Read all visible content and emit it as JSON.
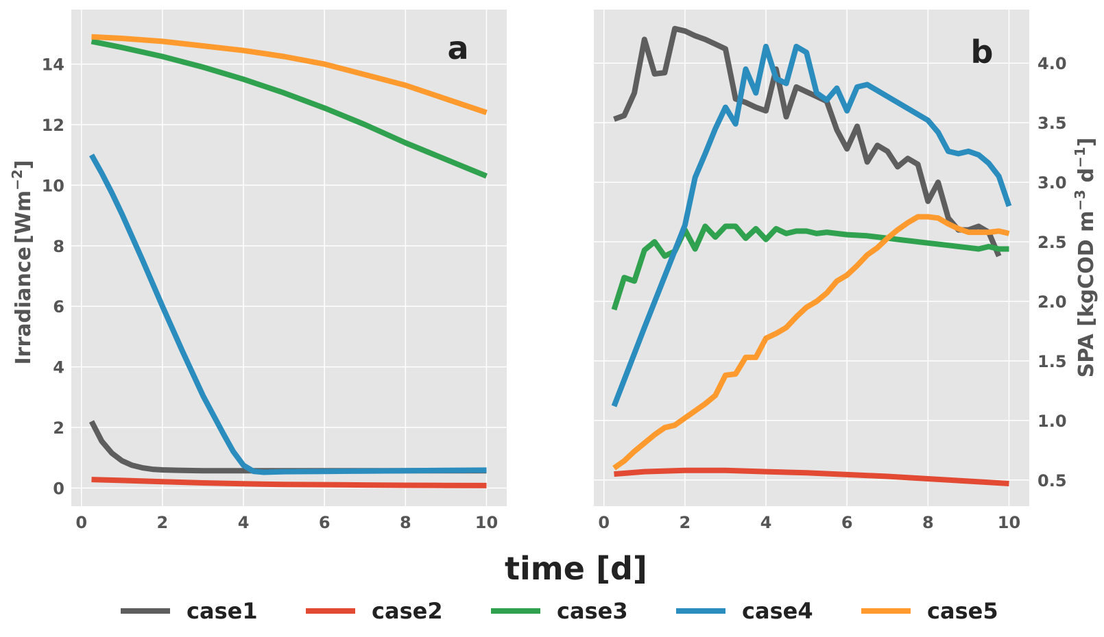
{
  "colors": {
    "case1": "#5e5e5e",
    "case2": "#e24a33",
    "case3": "#30a14e",
    "case4": "#2b8cbe",
    "case5": "#ff9a2e"
  },
  "figure": {
    "xlabel": "time [d]",
    "legend_placement": "bottom-center",
    "legend": [
      "case1",
      "case2",
      "case3",
      "case4",
      "case5"
    ]
  },
  "chart_data": [
    {
      "type": "line",
      "panel_label": "a",
      "ylabel_main": "Irradiance",
      "ylabel_unit": "[Wm",
      "ylabel_exp": "−2",
      "ylabel_close": "]",
      "y_axis_side": "left",
      "xlim": [
        -0.25,
        10.5
      ],
      "ylim": [
        -0.6,
        15.8
      ],
      "xticks": [
        0,
        2,
        4,
        6,
        8,
        10
      ],
      "yticks": [
        0,
        2,
        4,
        6,
        8,
        10,
        12,
        14
      ],
      "grid": true,
      "series": [
        {
          "name": "case1",
          "x": [
            0.25,
            0.5,
            0.75,
            1,
            1.25,
            1.5,
            1.75,
            2,
            2.5,
            3,
            3.5,
            4,
            4.25,
            4.5,
            5,
            6,
            7,
            8,
            9,
            10
          ],
          "y": [
            2.2,
            1.55,
            1.15,
            0.9,
            0.75,
            0.67,
            0.62,
            0.6,
            0.58,
            0.57,
            0.57,
            0.57,
            0.57,
            0.57,
            0.57,
            0.57,
            0.57,
            0.57,
            0.57,
            0.57
          ]
        },
        {
          "name": "case2",
          "x": [
            0.25,
            1,
            2,
            3,
            4,
            5,
            6,
            7,
            8,
            9,
            10
          ],
          "y": [
            0.28,
            0.25,
            0.21,
            0.17,
            0.14,
            0.12,
            0.11,
            0.1,
            0.09,
            0.085,
            0.08
          ]
        },
        {
          "name": "case3",
          "x": [
            0.25,
            1,
            2,
            3,
            4,
            5,
            6,
            7,
            8,
            9,
            10
          ],
          "y": [
            14.75,
            14.55,
            14.25,
            13.9,
            13.5,
            13.05,
            12.55,
            12,
            11.4,
            10.85,
            10.3
          ]
        },
        {
          "name": "case4",
          "x": [
            0.25,
            0.5,
            0.75,
            1,
            1.5,
            2,
            2.5,
            3,
            3.5,
            3.75,
            4,
            4.25,
            4.5,
            5,
            6,
            7,
            8,
            9,
            10
          ],
          "y": [
            11.0,
            10.4,
            9.75,
            9.05,
            7.55,
            6.0,
            4.5,
            3.05,
            1.8,
            1.2,
            0.75,
            0.55,
            0.52,
            0.54,
            0.55,
            0.56,
            0.57,
            0.58,
            0.59
          ]
        },
        {
          "name": "case5",
          "x": [
            0.25,
            1,
            2,
            3,
            4,
            5,
            6,
            7,
            8,
            9,
            10
          ],
          "y": [
            14.9,
            14.85,
            14.75,
            14.6,
            14.45,
            14.25,
            14.0,
            13.65,
            13.3,
            12.85,
            12.4
          ]
        }
      ]
    },
    {
      "type": "line",
      "panel_label": "b",
      "ylabel_main": "SPA [kgCOD m",
      "ylabel_exp1": "−3",
      "ylabel_mid": " d",
      "ylabel_exp2": "−1",
      "ylabel_close": "]",
      "y_axis_side": "right",
      "xlim": [
        -0.25,
        10.5
      ],
      "ylim": [
        0.28,
        4.45
      ],
      "xticks": [
        0,
        2,
        4,
        6,
        8,
        10
      ],
      "yticks": [
        "0.5",
        "1.0",
        "1.5",
        "2.0",
        "2.5",
        "3.0",
        "3.5",
        "4.0"
      ],
      "grid": true,
      "series": [
        {
          "name": "case1",
          "x": [
            0.25,
            0.5,
            0.75,
            1,
            1.25,
            1.5,
            1.75,
            2,
            2.25,
            2.5,
            2.75,
            3,
            3.25,
            3.5,
            3.75,
            4,
            4.25,
            4.5,
            4.75,
            5,
            5.25,
            5.5,
            5.75,
            6,
            6.25,
            6.5,
            6.75,
            7,
            7.25,
            7.5,
            7.75,
            8,
            8.25,
            8.5,
            8.75,
            9,
            9.25,
            9.5,
            9.75
          ],
          "y": [
            3.53,
            3.56,
            3.75,
            4.2,
            3.91,
            3.92,
            4.29,
            4.27,
            4.23,
            4.2,
            4.16,
            4.12,
            3.7,
            3.67,
            3.63,
            3.6,
            3.95,
            3.55,
            3.8,
            3.76,
            3.72,
            3.68,
            3.44,
            3.28,
            3.47,
            3.17,
            3.31,
            3.26,
            3.13,
            3.2,
            3.15,
            2.84,
            3.0,
            2.7,
            2.6,
            2.6,
            2.63,
            2.58,
            2.38
          ]
        },
        {
          "name": "case2",
          "x": [
            0.25,
            1,
            2,
            3,
            4,
            5,
            6,
            7,
            8,
            9,
            10
          ],
          "y": [
            0.55,
            0.57,
            0.58,
            0.58,
            0.57,
            0.56,
            0.545,
            0.53,
            0.51,
            0.49,
            0.47
          ]
        },
        {
          "name": "case3",
          "x": [
            0.25,
            0.5,
            0.75,
            1,
            1.25,
            1.5,
            1.75,
            2,
            2.25,
            2.5,
            2.75,
            3,
            3.25,
            3.5,
            3.75,
            4,
            4.25,
            4.5,
            4.75,
            5,
            5.25,
            5.5,
            5.75,
            6,
            6.5,
            7,
            7.5,
            8,
            8.5,
            9,
            9.25,
            9.5,
            9.75,
            10
          ],
          "y": [
            1.93,
            2.2,
            2.17,
            2.43,
            2.5,
            2.38,
            2.42,
            2.6,
            2.44,
            2.63,
            2.54,
            2.63,
            2.63,
            2.53,
            2.61,
            2.52,
            2.61,
            2.57,
            2.59,
            2.59,
            2.57,
            2.58,
            2.57,
            2.56,
            2.55,
            2.53,
            2.51,
            2.49,
            2.47,
            2.45,
            2.44,
            2.46,
            2.44,
            2.44
          ]
        },
        {
          "name": "case4",
          "x": [
            0.25,
            1,
            2,
            2.25,
            2.5,
            2.75,
            3,
            3.25,
            3.5,
            3.75,
            4,
            4.25,
            4.5,
            4.75,
            5,
            5.25,
            5.5,
            5.75,
            6,
            6.25,
            6.5,
            7,
            7.5,
            8,
            8.25,
            8.5,
            8.75,
            9,
            9.25,
            9.5,
            9.75,
            10
          ],
          "y": [
            1.12,
            1.78,
            2.64,
            3.04,
            3.24,
            3.45,
            3.63,
            3.49,
            3.95,
            3.75,
            4.14,
            3.87,
            3.83,
            4.14,
            4.09,
            3.75,
            3.69,
            3.79,
            3.6,
            3.8,
            3.82,
            3.72,
            3.62,
            3.52,
            3.42,
            3.26,
            3.24,
            3.26,
            3.23,
            3.16,
            3.05,
            2.8
          ]
        },
        {
          "name": "case5",
          "x": [
            0.25,
            0.5,
            0.75,
            1,
            1.25,
            1.5,
            1.75,
            2,
            2.25,
            2.5,
            2.75,
            3,
            3.25,
            3.5,
            3.75,
            4,
            4.25,
            4.5,
            4.75,
            5,
            5.25,
            5.5,
            5.75,
            6,
            6.25,
            6.5,
            6.75,
            7,
            7.25,
            7.5,
            7.75,
            8,
            8.25,
            8.5,
            8.75,
            9,
            9.25,
            9.5,
            9.75,
            10
          ],
          "y": [
            0.6,
            0.66,
            0.74,
            0.81,
            0.88,
            0.94,
            0.96,
            1.02,
            1.08,
            1.14,
            1.21,
            1.38,
            1.39,
            1.53,
            1.53,
            1.69,
            1.73,
            1.78,
            1.87,
            1.95,
            2.0,
            2.07,
            2.17,
            2.22,
            2.3,
            2.39,
            2.45,
            2.53,
            2.6,
            2.66,
            2.71,
            2.71,
            2.7,
            2.65,
            2.61,
            2.58,
            2.58,
            2.58,
            2.59,
            2.57
          ]
        }
      ]
    }
  ]
}
